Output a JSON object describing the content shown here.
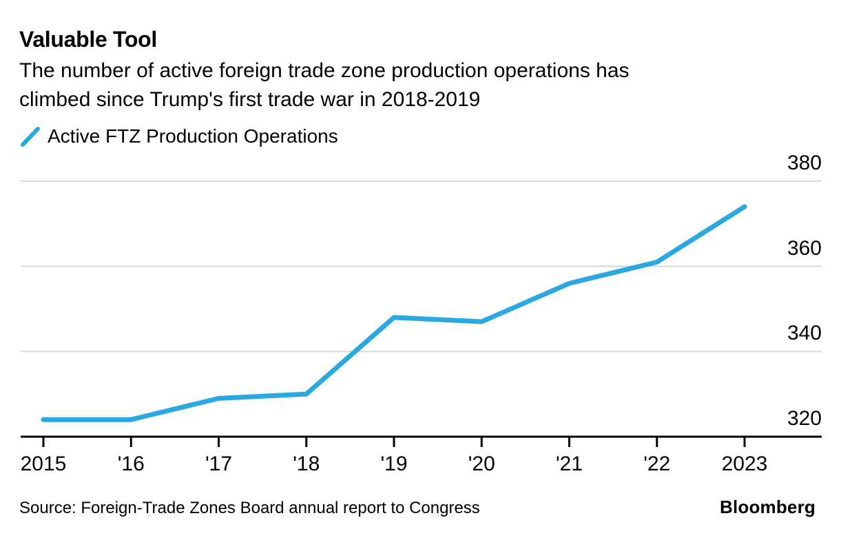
{
  "colors": {
    "accent": "#29A8E1",
    "text": "#000000",
    "gridline": "#D8D8D8",
    "axis": "#000000",
    "background": "#FFFFFF"
  },
  "footer": {
    "source": "Source: Foreign-Trade Zones Board annual report to Congress",
    "branding": "Bloomberg"
  },
  "chart_data": {
    "type": "line",
    "title": "Valuable Tool",
    "subtitle": "The number of active foreign trade zone production operations has climbed since Trump's first trade war in 2018-2019",
    "subtitle_lines": [
      "The number of active foreign trade zone production operations has",
      "climbed since Trump's first trade war in 2018-2019"
    ],
    "legend": [
      "Active FTZ Production Operations"
    ],
    "legend_position": "top-left",
    "x": [
      2015,
      2016,
      2017,
      2018,
      2019,
      2020,
      2021,
      2022,
      2023
    ],
    "x_tick_labels": [
      "2015",
      "'16",
      "'17",
      "'18",
      "'19",
      "'20",
      "'21",
      "'22",
      "2023"
    ],
    "series": [
      {
        "name": "Active FTZ Production Operations",
        "values": [
          324,
          324,
          329,
          330,
          348,
          347,
          356,
          361,
          374
        ]
      }
    ],
    "xlabel": "",
    "ylabel": "",
    "ylim": [
      320,
      380
    ],
    "y_ticks": [
      320,
      340,
      360,
      380
    ],
    "grid": "horizontal",
    "line_color": "#29A8E1"
  }
}
